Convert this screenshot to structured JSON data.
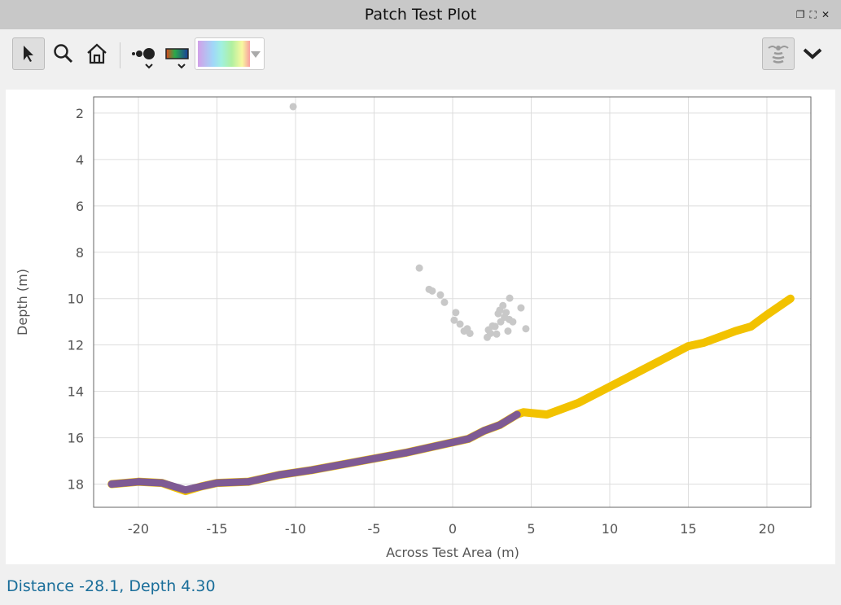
{
  "window": {
    "title": "Patch Test Plot",
    "controls": [
      "restore",
      "fullscreen",
      "close"
    ]
  },
  "toolbar": {
    "icons": [
      "pointer-icon",
      "zoom-icon",
      "home-icon",
      "point-size-icon",
      "color-scale-icon",
      "colormap-swatch",
      "sonar-icon",
      "chevron-down-icon"
    ]
  },
  "status": {
    "text": "Distance -28.1, Depth 4.30"
  },
  "chart_data": {
    "type": "scatter",
    "xlabel": "Across Test Area (m)",
    "ylabel": "Depth (m)",
    "xlim": [
      -22.85,
      22.8
    ],
    "ylim": [
      19.0,
      1.3
    ],
    "y_inverted": true,
    "grid": true,
    "xticks": [
      -20,
      -15,
      -10,
      -5,
      0,
      5,
      10,
      15,
      20
    ],
    "yticks": [
      2,
      4,
      6,
      8,
      10,
      12,
      14,
      16,
      18
    ],
    "series": [
      {
        "color": "#f2c200",
        "points": [
          [
            -21.7,
            18.0
          ],
          [
            -20,
            17.9
          ],
          [
            -18.5,
            17.95
          ],
          [
            -17,
            18.3
          ],
          [
            -16,
            18.1
          ],
          [
            -15,
            17.95
          ],
          [
            -13,
            17.9
          ],
          [
            -11,
            17.6
          ],
          [
            -9,
            17.4
          ],
          [
            -7,
            17.15
          ],
          [
            -5,
            16.9
          ],
          [
            -3,
            16.65
          ],
          [
            -1,
            16.35
          ],
          [
            0,
            16.2
          ],
          [
            1,
            16.05
          ],
          [
            2,
            15.7
          ],
          [
            3,
            15.45
          ],
          [
            4.1,
            15.0
          ],
          [
            4.5,
            14.9
          ],
          [
            6,
            15.0
          ],
          [
            8,
            14.5
          ],
          [
            10,
            13.8
          ],
          [
            12,
            13.1
          ],
          [
            14,
            12.4
          ],
          [
            15,
            12.05
          ],
          [
            16,
            11.9
          ],
          [
            18,
            11.4
          ],
          [
            19,
            11.2
          ],
          [
            20,
            10.7
          ],
          [
            21.5,
            10.0
          ]
        ]
      },
      {
        "color": "#7e5a94",
        "points": [
          [
            -21.7,
            18.0
          ],
          [
            -20,
            17.9
          ],
          [
            -18.5,
            17.95
          ],
          [
            -17,
            18.25
          ],
          [
            -16,
            18.1
          ],
          [
            -15,
            17.95
          ],
          [
            -13,
            17.9
          ],
          [
            -11,
            17.6
          ],
          [
            -9,
            17.4
          ],
          [
            -7,
            17.15
          ],
          [
            -5,
            16.9
          ],
          [
            -3,
            16.65
          ],
          [
            -1,
            16.35
          ],
          [
            0,
            16.2
          ],
          [
            1,
            16.05
          ],
          [
            2,
            15.7
          ],
          [
            3,
            15.45
          ],
          [
            4.1,
            15.0
          ]
        ]
      },
      {
        "color": "#c8c8c8",
        "points": [
          [
            -10.15,
            1.72
          ],
          [
            -2.12,
            8.68
          ],
          [
            -1.5,
            9.6
          ],
          [
            -1.3,
            9.67
          ],
          [
            -0.78,
            9.84
          ],
          [
            -0.52,
            10.16
          ],
          [
            0.2,
            10.6
          ],
          [
            0.1,
            10.93
          ],
          [
            0.47,
            11.1
          ],
          [
            0.93,
            11.3
          ],
          [
            0.73,
            11.4
          ],
          [
            1.1,
            11.5
          ],
          [
            2.2,
            11.67
          ],
          [
            2.54,
            11.18
          ],
          [
            2.9,
            10.65
          ],
          [
            3.2,
            10.3
          ],
          [
            3.63,
            9.98
          ],
          [
            4.35,
            10.4
          ],
          [
            4.66,
            11.3
          ],
          [
            3.83,
            11.0
          ],
          [
            3.52,
            11.4
          ],
          [
            2.8,
            11.53
          ],
          [
            2.28,
            11.35
          ],
          [
            3.06,
            11.0
          ],
          [
            3.3,
            10.8
          ],
          [
            2.7,
            11.2
          ],
          [
            3.0,
            10.5
          ],
          [
            3.4,
            10.6
          ],
          [
            2.4,
            11.5
          ],
          [
            3.6,
            10.9
          ]
        ]
      }
    ]
  }
}
